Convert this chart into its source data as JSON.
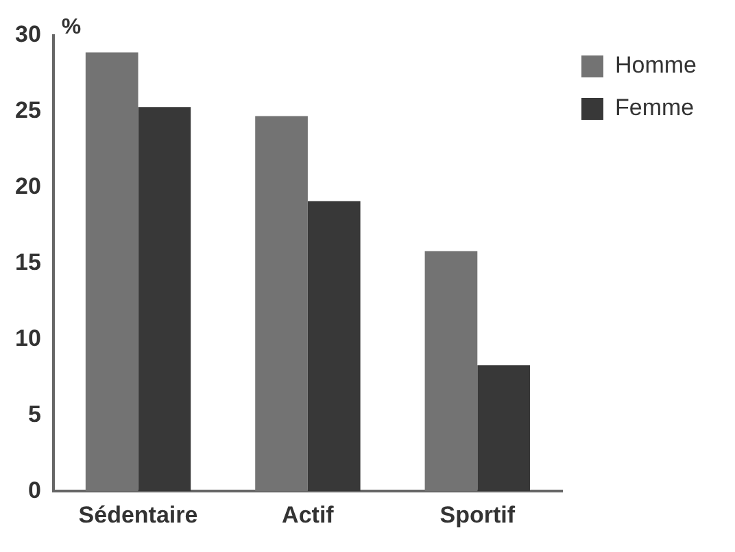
{
  "chart_data": {
    "type": "bar",
    "ylabel": "%",
    "categories": [
      "Sédentaire",
      "Actif",
      "Sportif"
    ],
    "series": [
      {
        "name": "Homme",
        "color": "#737373",
        "values": [
          28.9,
          24.7,
          15.8
        ]
      },
      {
        "name": "Femme",
        "color": "#383838",
        "values": [
          25.3,
          19.1,
          8.3
        ]
      }
    ],
    "ylim": [
      0,
      30
    ],
    "yticks": [
      0,
      5,
      10,
      15,
      20,
      25,
      30
    ],
    "grid": false,
    "legend": "top right"
  }
}
